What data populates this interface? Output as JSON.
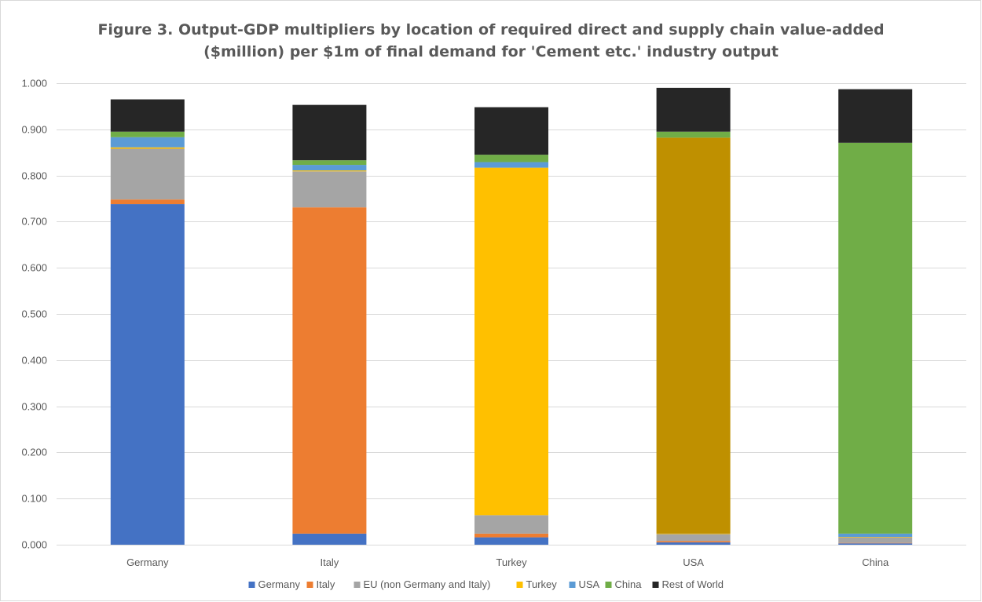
{
  "chart_data": {
    "type": "bar",
    "stacked": true,
    "title_line1": "Figure 3. Output-GDP multipliers by location of required direct and supply chain value-added",
    "title_line2": "($million) per $1m of final demand for 'Cement etc.' industry output",
    "xlabel": "",
    "ylabel": "",
    "ylim": [
      0,
      1.0
    ],
    "yticks": [
      "0.000",
      "0.100",
      "0.200",
      "0.300",
      "0.400",
      "0.500",
      "0.600",
      "0.700",
      "0.800",
      "0.900",
      "1.000"
    ],
    "grid": true,
    "legend_position": "bottom",
    "categories": [
      "Germany",
      "Italy",
      "Turkey",
      "USA",
      "China"
    ],
    "series": [
      {
        "name": "Germany",
        "color": "#4472C4",
        "values": [
          0.738,
          0.024,
          0.016,
          0.005,
          0.003
        ]
      },
      {
        "name": "Italy",
        "color": "#ED7D31",
        "values": [
          0.01,
          0.707,
          0.008,
          0.003,
          0.001
        ]
      },
      {
        "name": "EU (non Germany and Italy)",
        "color": "#A5A5A5",
        "values": [
          0.11,
          0.078,
          0.04,
          0.015,
          0.012
        ]
      },
      {
        "name": "Turkey",
        "color": "#FFC000",
        "values": [
          0.003,
          0.002,
          0.753,
          0.001,
          0.001
        ]
      },
      {
        "name": "USA",
        "color": "#5B9BD5",
        "values": [
          0.022,
          0.012,
          0.012,
          0.858,
          0.007
        ]
      },
      {
        "name": "China",
        "color": "#70AD47",
        "values": [
          0.012,
          0.01,
          0.016,
          0.013,
          0.847
        ]
      },
      {
        "name": "Rest of World",
        "color": "#262626",
        "values": [
          0.07,
          0.12,
          0.103,
          0.095,
          0.116
        ]
      }
    ],
    "override_colors": {
      "USA": {
        "USA": "#BF9000"
      }
    }
  }
}
